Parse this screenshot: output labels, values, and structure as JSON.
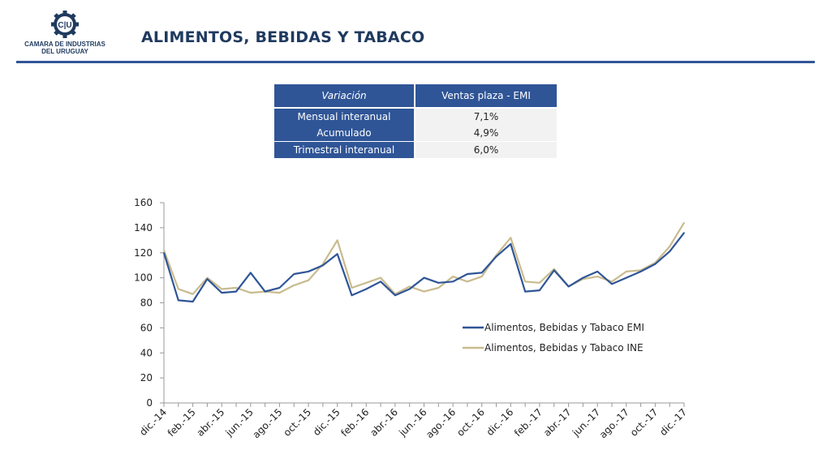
{
  "header": {
    "logo_mark": "C|U",
    "logo_line1": "CAMARA DE INDUSTRIAS",
    "logo_line2": "DEL URUGUAY",
    "title": "ALIMENTOS, BEBIDAS Y TABACO",
    "brand_color": "#2f5597"
  },
  "summary_table": {
    "headers": [
      "Variación",
      "Ventas plaza - EMI"
    ],
    "rows": [
      {
        "label": "Mensual interanual",
        "value": "7,1%"
      },
      {
        "label": "Acumulado",
        "value": "4,9%"
      },
      {
        "label": "Trimestral interanual",
        "value": "6,0%"
      }
    ]
  },
  "chart_data": {
    "type": "line",
    "title": "",
    "xlabel": "",
    "ylabel": "",
    "ylim": [
      0,
      160
    ],
    "yticks": [
      0,
      20,
      40,
      60,
      80,
      100,
      120,
      140,
      160
    ],
    "grid": false,
    "legend_position": "right",
    "x": [
      "dic.-14",
      "ene.-15",
      "feb.-15",
      "mar.-15",
      "abr.-15",
      "may.-15",
      "jun.-15",
      "jul.-15",
      "ago.-15",
      "sep.-15",
      "oct.-15",
      "nov.-15",
      "dic.-15",
      "ene.-16",
      "feb.-16",
      "mar.-16",
      "abr.-16",
      "may.-16",
      "jun.-16",
      "jul.-16",
      "ago.-16",
      "sep.-16",
      "oct.-16",
      "nov.-16",
      "dic.-16",
      "ene.-17",
      "feb.-17",
      "mar.-17",
      "abr.-17",
      "may.-17",
      "jun.-17",
      "jul.-17",
      "ago.-17",
      "sep.-17",
      "oct.-17",
      "nov.-17",
      "dic.-17"
    ],
    "x_tick_labels": [
      "dic.-14",
      "feb.-15",
      "abr.-15",
      "jun.-15",
      "ago.-15",
      "oct.-15",
      "dic.-15",
      "feb.-16",
      "abr.-16",
      "jun.-16",
      "ago.-16",
      "oct.-16",
      "dic.-16",
      "feb.-17",
      "abr.-17",
      "jun.-17",
      "ago.-17",
      "oct.-17",
      "dic.-17"
    ],
    "series": [
      {
        "name": "Alimentos, Bebidas y Tabaco EMI",
        "color": "#2f5597",
        "values": [
          120,
          82,
          81,
          99,
          88,
          89,
          104,
          89,
          92,
          103,
          105,
          110,
          119,
          86,
          91,
          97,
          86,
          91,
          100,
          96,
          97,
          103,
          104,
          117,
          127,
          89,
          90,
          106,
          93,
          100,
          105,
          95,
          100,
          105,
          111,
          121,
          136
        ]
      },
      {
        "name": "Alimentos, Bebidas y Tabaco INE",
        "color": "#c9bb8e",
        "values": [
          122,
          91,
          87,
          100,
          91,
          92,
          88,
          89,
          88,
          94,
          98,
          111,
          130,
          92,
          96,
          100,
          87,
          93,
          89,
          92,
          101,
          97,
          101,
          118,
          132,
          97,
          96,
          107,
          93,
          99,
          101,
          97,
          105,
          106,
          112,
          125,
          144
        ]
      }
    ]
  }
}
